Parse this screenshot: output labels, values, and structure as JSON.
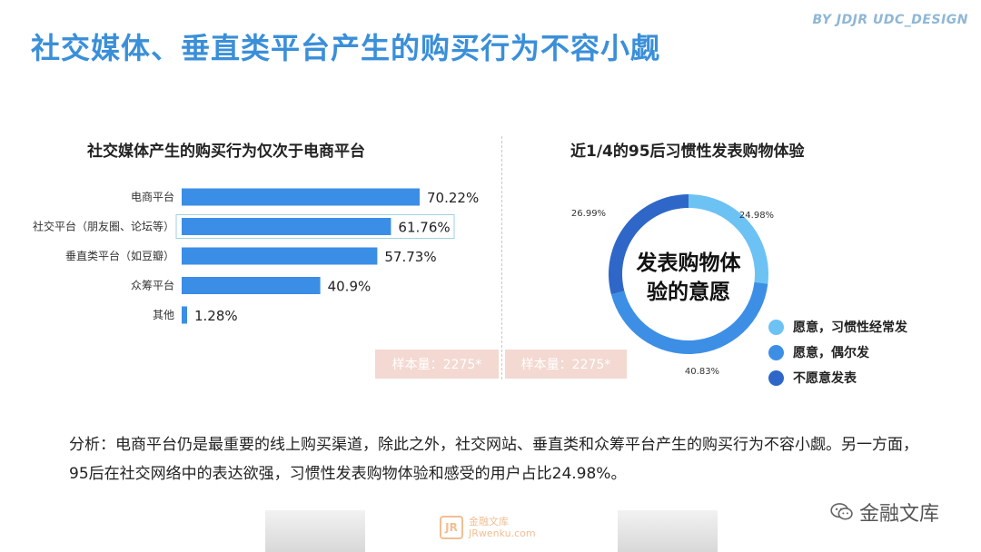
{
  "header": {
    "credit": "BY JDJR UDC_DESIGN",
    "title": "社交媒体、垂直类平台产生的购买行为不容小觑"
  },
  "bar_section": {
    "title": "社交媒体产生的购买行为仅次于电商平台",
    "sample": "样本量：2275*"
  },
  "donut_section": {
    "title": "近1/4的95后习惯性发表购物体验",
    "center_line1": "发表购物体",
    "center_line2": "验的意愿",
    "sample": "样本量：2275*"
  },
  "analysis": "分析：电商平台仍是最重要的线上购买渠道，除此之外，社交网站、垂直类和众筹平台产生的购买行为不容小觑。另一方面，95后在社交网络中的表达欲强，习惯性发表购物体验和感受的用户占比24.98%。",
  "watermark": {
    "cn": "金融文库",
    "logo_badge": "JR",
    "logo_cn": "金融文库",
    "logo_url": "JRwenku.com"
  },
  "colors": {
    "bar": "#3b8ee6",
    "title": "#3a8fd9",
    "slice_often": "#6dc2f4",
    "slice_occasional": "#3d8fe6",
    "slice_no": "#2e67c8"
  },
  "chart_data": [
    {
      "type": "bar",
      "orientation": "horizontal",
      "title": "社交媒体产生的购买行为仅次于电商平台",
      "categories": [
        "电商平台",
        "社交平台（朋友圈、论坛等）",
        "垂直类平台（如豆瓣）",
        "众筹平台",
        "其他"
      ],
      "values": [
        70.22,
        61.76,
        57.73,
        40.9,
        1.28
      ],
      "value_labels": [
        "70.22%",
        "61.76%",
        "57.73%",
        "40.9%",
        "1.28%"
      ],
      "highlighted_index": 1,
      "xlim": [
        0,
        100
      ],
      "grid": false
    },
    {
      "type": "pie",
      "variant": "donut",
      "title": "近1/4的95后习惯性发表购物体验",
      "slices": [
        {
          "name": "愿意，习惯性经常发",
          "value": 24.98,
          "label": "24.98%",
          "color": "#6dc2f4"
        },
        {
          "name": "愿意，偶尔发",
          "value": 40.83,
          "label": "40.83%",
          "color": "#3d8fe6"
        },
        {
          "name": "不愿意发表",
          "value": 26.99,
          "label": "26.99%",
          "color": "#2e67c8"
        }
      ],
      "legend_position": "bottom-right"
    }
  ]
}
